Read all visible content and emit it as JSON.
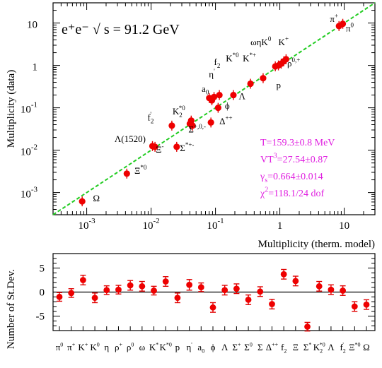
{
  "chart_data": [
    {
      "type": "scatter",
      "title": "e⁺e⁻ √ s = 91.2 GeV",
      "xlabel": "Multiplicity (therm. model)",
      "ylabel": "Multiplicity (data)",
      "xscale": "log",
      "yscale": "log",
      "xlim": [
        0.0003,
        30
      ],
      "ylim": [
        0.0003,
        30
      ],
      "xticks": [
        {
          "value": 0.001,
          "base": "10",
          "exp": "-3"
        },
        {
          "value": 0.01,
          "base": "10",
          "exp": "-2"
        },
        {
          "value": 0.1,
          "base": "10",
          "exp": "-1"
        },
        {
          "value": 1,
          "base": "1",
          "exp": ""
        },
        {
          "value": 10,
          "base": "10",
          "exp": ""
        }
      ],
      "yticks": [
        {
          "value": 0.001,
          "base": "10",
          "exp": "-3"
        },
        {
          "value": 0.01,
          "base": "10",
          "exp": "-2"
        },
        {
          "value": 0.1,
          "base": "10",
          "exp": "-1"
        },
        {
          "value": 1,
          "base": "1",
          "exp": ""
        },
        {
          "value": 10,
          "base": "10",
          "exp": ""
        }
      ],
      "reference_line": "y = x",
      "points": [
        {
          "x": 0.00085,
          "y": 0.00062
        },
        {
          "x": 0.0042,
          "y": 0.0028
        },
        {
          "x": 0.0105,
          "y": 0.0125
        },
        {
          "x": 0.0115,
          "y": 0.012
        },
        {
          "x": 0.021,
          "y": 0.038
        },
        {
          "x": 0.025,
          "y": 0.012
        },
        {
          "x": 0.04,
          "y": 0.042
        },
        {
          "x": 0.042,
          "y": 0.05
        },
        {
          "x": 0.044,
          "y": 0.038
        },
        {
          "x": 0.08,
          "y": 0.17
        },
        {
          "x": 0.085,
          "y": 0.045
        },
        {
          "x": 0.088,
          "y": 0.15
        },
        {
          "x": 0.095,
          "y": 0.18
        },
        {
          "x": 0.11,
          "y": 0.1
        },
        {
          "x": 0.115,
          "y": 0.2
        },
        {
          "x": 0.19,
          "y": 0.2
        },
        {
          "x": 0.35,
          "y": 0.37
        },
        {
          "x": 0.55,
          "y": 0.5
        },
        {
          "x": 0.85,
          "y": 0.95
        },
        {
          "x": 0.95,
          "y": 1.0
        },
        {
          "x": 1.05,
          "y": 1.1
        },
        {
          "x": 1.15,
          "y": 1.25
        },
        {
          "x": 1.25,
          "y": 1.4
        },
        {
          "x": 8.3,
          "y": 8.5
        },
        {
          "x": 9.5,
          "y": 9.6
        }
      ],
      "labels": [
        {
          "text": "Ω",
          "x": 0.00125,
          "y": 0.00062
        },
        {
          "text": "Ξ",
          "sup": "*0",
          "x": 0.0055,
          "y": 0.0028
        },
        {
          "text": "Λ(1520)",
          "x": 0.0027,
          "y": 0.0155
        },
        {
          "text": "Ξ",
          "sup": "-",
          "x": 0.0118,
          "y": 0.0088
        },
        {
          "text": "Σ",
          "sup": "*+-",
          "x": 0.028,
          "y": 0.0095
        },
        {
          "text": "f",
          "sub": "2",
          "sup": "'",
          "x": 0.0088,
          "y": 0.05
        },
        {
          "text": "K",
          "sub": "2",
          "sup": "*0",
          "x": 0.0215,
          "y": 0.07
        },
        {
          "text": "Σ",
          "sup": "+,0,-",
          "x": 0.038,
          "y": 0.026
        },
        {
          "text": "a",
          "sub": "0",
          "x": 0.061,
          "y": 0.24
        },
        {
          "text": "η",
          "sup": "'",
          "x": 0.079,
          "y": 0.52
        },
        {
          "text": "Δ",
          "sup": "++",
          "x": 0.115,
          "y": 0.041
        },
        {
          "text": "ϕ",
          "x": 0.14,
          "y": 0.095
        },
        {
          "text": "Λ",
          "x": 0.23,
          "y": 0.16
        },
        {
          "text": "f",
          "sub": "2",
          "x": 0.095,
          "y": 1.03
        },
        {
          "text": "K",
          "sup": "*0",
          "x": 0.145,
          "y": 1.25
        },
        {
          "text": "K",
          "sup": "*+",
          "x": 0.265,
          "y": 1.25
        },
        {
          "text": "ωηK",
          "sup": "0",
          "x": 0.35,
          "y": 3.0
        },
        {
          "text": "K",
          "sup": "+",
          "x": 0.95,
          "y": 3.0
        },
        {
          "text": "ρ",
          "sup": "0,+",
          "x": 1.3,
          "y": 0.95
        },
        {
          "text": "p",
          "x": 0.88,
          "y": 0.29
        },
        {
          "text": "π",
          "sup": "+",
          "x": 6.0,
          "y": 10.6
        },
        {
          "text": "π",
          "sup": "0",
          "x": 10.6,
          "y": 6.4
        }
      ],
      "fit_results": [
        {
          "text": "T=159.3±0.8 MeV"
        },
        {
          "text": "VT",
          "sup": "3",
          "rest": "=27.54±0.87"
        },
        {
          "text": "γ",
          "sub": "s",
          "rest": "=0.664±0.014"
        },
        {
          "text": "χ",
          "sup": "2",
          "rest": "=118.1/24 dof"
        }
      ]
    },
    {
      "type": "scatter",
      "ylabel": "Number of St.Dev.",
      "ylim": [
        -8,
        8
      ],
      "yticks": [
        5,
        0,
        -5
      ],
      "categories": [
        {
          "base": "π",
          "sup": "0"
        },
        {
          "base": "π",
          "sup": "+"
        },
        {
          "base": "K",
          "sup": "+"
        },
        {
          "base": "K",
          "sup": "0"
        },
        {
          "base": "η"
        },
        {
          "base": "ρ",
          "sup": "+"
        },
        {
          "base": "ρ",
          "sup": "0"
        },
        {
          "base": "ω"
        },
        {
          "base": "K",
          "sup": "*"
        },
        {
          "base": "K",
          "sup": "*0"
        },
        {
          "base": "p"
        },
        {
          "base": "η",
          "sup": "'"
        },
        {
          "base": "a",
          "sub": "0"
        },
        {
          "base": "ϕ"
        },
        {
          "base": "Λ"
        },
        {
          "base": "Σ",
          "sup": "+"
        },
        {
          "base": "Σ",
          "sup": "0"
        },
        {
          "base": "Σ"
        },
        {
          "base": "Δ",
          "sup": "++"
        },
        {
          "base": "f",
          "sub": "2"
        },
        {
          "base": "Ξ"
        },
        {
          "base": "Σ",
          "sup": "*"
        },
        {
          "base": "K",
          "sub": "2",
          "sup": "*0"
        },
        {
          "base": "Λ"
        },
        {
          "base": "f",
          "sub": "2",
          "sup": "'"
        },
        {
          "base": "Ξ",
          "sup": "*0"
        },
        {
          "base": "Ω"
        }
      ],
      "values": [
        -1.0,
        -0.2,
        2.5,
        -1.2,
        0.4,
        0.5,
        1.4,
        1.2,
        0.3,
        2.2,
        -1.2,
        1.5,
        1.0,
        -3.2,
        0.4,
        0.7,
        -1.6,
        0.1,
        -2.5,
        3.7,
        2.3,
        -7.2,
        1.2,
        0.5,
        0.3,
        -3.0,
        -2.6
      ],
      "errors": [
        0.9,
        0.9,
        1.0,
        1.0,
        0.9,
        0.9,
        1.0,
        1.0,
        0.9,
        1.0,
        1.0,
        1.1,
        0.9,
        1.0,
        1.0,
        1.0,
        1.0,
        1.0,
        1.0,
        1.0,
        1.0,
        0.9,
        1.0,
        1.0,
        1.0,
        1.0,
        1.0
      ]
    }
  ]
}
